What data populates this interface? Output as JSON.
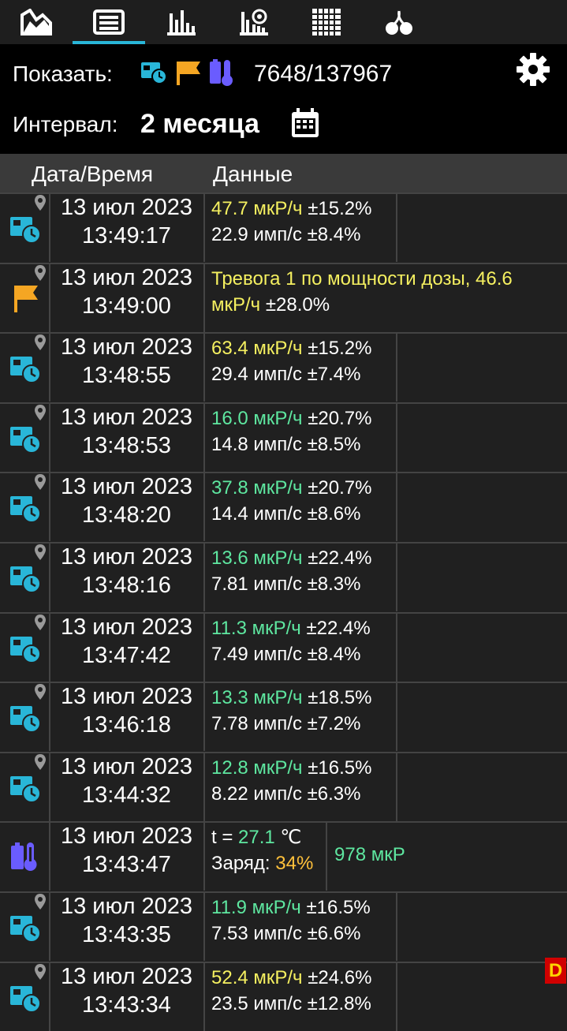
{
  "tabs": [
    {
      "name": "chart-tab",
      "icon": "area-chart-icon"
    },
    {
      "name": "log-tab",
      "icon": "table-list-icon",
      "active": true
    },
    {
      "name": "histogram-tab",
      "icon": "bar-chart-icon"
    },
    {
      "name": "spectrum-tab",
      "icon": "spectrum-icon"
    },
    {
      "name": "grid-tab",
      "icon": "grid-icon"
    },
    {
      "name": "radiation-tab",
      "icon": "radiation-icon"
    }
  ],
  "filter": {
    "show_label": "Показать:",
    "counter": "7648/137967",
    "interval_label": "Интервал:",
    "interval_value": "2 месяца"
  },
  "columns": {
    "datetime": "Дата/Время",
    "data": "Данные"
  },
  "rows": [
    {
      "type": "measure",
      "date": "13 июл 2023",
      "time": "13:49:17",
      "dose": "47.7 мкР/ч",
      "dose_color": "yellow",
      "dose_err": " ±15.2%",
      "cps": "22.9 имп/с ±8.4%"
    },
    {
      "type": "alarm",
      "date": "13 июл 2023",
      "time": "13:49:00",
      "line1_prefix": "Тревога 1 по мощности дозы, 46.6",
      "line2_dose": "мкР/ч",
      "line2_err": " ±28.0%"
    },
    {
      "type": "measure",
      "date": "13 июл 2023",
      "time": "13:48:55",
      "dose": "63.4 мкР/ч",
      "dose_color": "yellow",
      "dose_err": " ±15.2%",
      "cps": "29.4 имп/с ±7.4%"
    },
    {
      "type": "measure",
      "date": "13 июл 2023",
      "time": "13:48:53",
      "dose": "16.0 мкР/ч",
      "dose_color": "green",
      "dose_err": " ±20.7%",
      "cps": "14.8 имп/с ±8.5%"
    },
    {
      "type": "measure",
      "date": "13 июл 2023",
      "time": "13:48:20",
      "dose": "37.8 мкР/ч",
      "dose_color": "green",
      "dose_err": " ±20.7%",
      "cps": "14.4 имп/с ±8.6%"
    },
    {
      "type": "measure",
      "date": "13 июл 2023",
      "time": "13:48:16",
      "dose": "13.6 мкР/ч",
      "dose_color": "green",
      "dose_err": " ±22.4%",
      "cps": "7.81 имп/с ±8.3%"
    },
    {
      "type": "measure",
      "date": "13 июл 2023",
      "time": "13:47:42",
      "dose": "11.3 мкР/ч",
      "dose_color": "green",
      "dose_err": " ±22.4%",
      "cps": "7.49 имп/с ±8.4%"
    },
    {
      "type": "measure",
      "date": "13 июл 2023",
      "time": "13:46:18",
      "dose": "13.3 мкР/ч",
      "dose_color": "green",
      "dose_err": " ±18.5%",
      "cps": "7.78 имп/с ±7.2%"
    },
    {
      "type": "measure",
      "date": "13 июл 2023",
      "time": "13:44:32",
      "dose": "12.8 мкР/ч",
      "dose_color": "green",
      "dose_err": " ±16.5%",
      "cps": "8.22 имп/с ±6.3%"
    },
    {
      "type": "device",
      "date": "13 июл 2023",
      "time": "13:43:47",
      "temp_label": "t = ",
      "temp_value": "27.1",
      "temp_unit": " ℃",
      "charge_label": "Заряд: ",
      "charge_value": "34%",
      "dose_total": "978 мкР"
    },
    {
      "type": "measure",
      "date": "13 июл 2023",
      "time": "13:43:35",
      "dose": "11.9 мкР/ч",
      "dose_color": "green",
      "dose_err": " ±16.5%",
      "cps": "7.53 имп/с ±6.6%"
    },
    {
      "type": "measure",
      "date": "13 июл 2023",
      "time": "13:43:34",
      "dose": "52.4 мкР/ч",
      "dose_color": "yellow",
      "dose_err": " ±24.6%",
      "cps": "23.5 имп/с ±12.8%"
    }
  ],
  "badge": "D",
  "colors": {
    "accent": "#29b6d8",
    "yellow": "#f5f060",
    "green": "#5ee7a0",
    "orange": "#ffc13b",
    "flag": "#f5a623",
    "battery": "#6a5cff"
  }
}
